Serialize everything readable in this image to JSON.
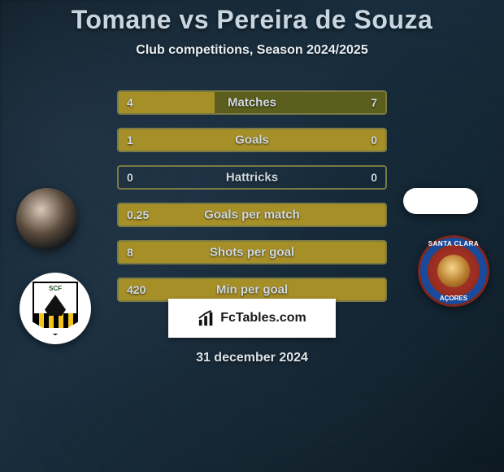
{
  "title": "Tomane vs Pereira de Souza",
  "subtitle": "Club competitions, Season 2024/2025",
  "date_label": "31 december 2024",
  "footer_brand": "FcTables.com",
  "colors": {
    "left_player": "#a78f28",
    "right_player": "#5b5e1c",
    "neutral_border": "#7a7a45",
    "text": "#cfd9e0"
  },
  "club_left": {
    "initials": "SCF"
  },
  "club_right": {
    "top_text": "SANTA CLARA",
    "bottom_text": "AÇORES"
  },
  "stats": [
    {
      "label": "Matches",
      "left_val": "4",
      "right_val": "7",
      "left_pct": 36,
      "right_pct": 64
    },
    {
      "label": "Goals",
      "left_val": "1",
      "right_val": "0",
      "left_pct": 100,
      "right_pct": 0
    },
    {
      "label": "Hattricks",
      "left_val": "0",
      "right_val": "0",
      "left_pct": 0,
      "right_pct": 0
    },
    {
      "label": "Goals per match",
      "left_val": "0.25",
      "right_val": "",
      "left_pct": 100,
      "right_pct": 0
    },
    {
      "label": "Shots per goal",
      "left_val": "8",
      "right_val": "",
      "left_pct": 100,
      "right_pct": 0
    },
    {
      "label": "Min per goal",
      "left_val": "420",
      "right_val": "",
      "left_pct": 100,
      "right_pct": 0
    }
  ]
}
